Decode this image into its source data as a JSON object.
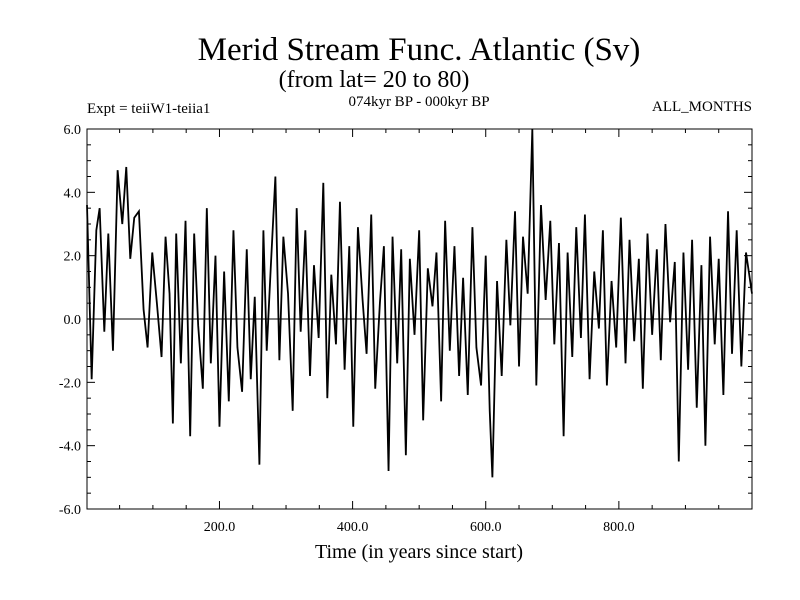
{
  "header": {
    "title": "Merid Stream Func. Atlantic (Sv)",
    "subtitle": "(from lat= 20 to 80)",
    "left_note": "Expt = teiiW1-teiia1",
    "center_note": "074kyr BP - 000kyr BP",
    "right_note": "ALL_MONTHS"
  },
  "chart_data": {
    "type": "line",
    "title": "Merid Stream Func. Atlantic (Sv)",
    "subtitle": "(from lat= 20 to 80)",
    "xlabel": "Time (in years since start)",
    "ylabel": "",
    "xlim": [
      1,
      1000
    ],
    "ylim": [
      -6.0,
      6.0
    ],
    "xticks": [
      200,
      400,
      600,
      800
    ],
    "xtick_labels": [
      "200.0",
      "400.0",
      "600.0",
      "800.0"
    ],
    "yticks": [
      -6,
      -4,
      -2,
      0,
      2,
      4,
      6
    ],
    "ytick_labels": [
      "-6.0",
      "-4.0",
      "-2.0",
      "0.0",
      "2.0",
      "4.0",
      "6.0"
    ],
    "zero_line": true,
    "grid": false,
    "color": "#000000",
    "series": [
      {
        "x": [
          1,
          8,
          15,
          20,
          27,
          33,
          40,
          47,
          54,
          60,
          66,
          72,
          79,
          86,
          92,
          99,
          106,
          113,
          119,
          125,
          130,
          135,
          142,
          149,
          156,
          162,
          168,
          175,
          181,
          187,
          194,
          200,
          207,
          214,
          221,
          227,
          234,
          241,
          247,
          253,
          260,
          266,
          271,
          277,
          284,
          290,
          296,
          303,
          310,
          316,
          322,
          329,
          336,
          342,
          349,
          356,
          362,
          368,
          375,
          381,
          388,
          395,
          401,
          408,
          415,
          421,
          428,
          434,
          441,
          447,
          454,
          460,
          467,
          473,
          480,
          486,
          493,
          500,
          506,
          513,
          520,
          526,
          533,
          539,
          546,
          553,
          560,
          566,
          573,
          580,
          586,
          593,
          600,
          606,
          610,
          617,
          624,
          631,
          637,
          644,
          650,
          656,
          663,
          670,
          676,
          683,
          690,
          697,
          703,
          710,
          717,
          723,
          730,
          736,
          743,
          749,
          756,
          763,
          770,
          776,
          782,
          789,
          796,
          803,
          810,
          816,
          823,
          830,
          836,
          843,
          850,
          857,
          863,
          870,
          877,
          884,
          890,
          897,
          904,
          910,
          917,
          924,
          930,
          937,
          944,
          950,
          957,
          964,
          970,
          977,
          984,
          991,
          1000
        ],
        "y": [
          3.6,
          -1.9,
          2.8,
          3.5,
          -0.4,
          2.7,
          -1.0,
          4.7,
          3.0,
          4.8,
          1.9,
          3.2,
          3.4,
          0.3,
          -0.9,
          2.1,
          0.5,
          -1.2,
          2.6,
          0.8,
          -3.3,
          2.7,
          -1.4,
          3.1,
          -3.7,
          2.7,
          -0.2,
          -2.2,
          3.5,
          -1.4,
          2.0,
          -3.4,
          1.5,
          -2.6,
          2.8,
          -0.9,
          -2.3,
          2.2,
          -1.9,
          0.7,
          -4.6,
          2.8,
          -1.0,
          1.6,
          4.5,
          -1.3,
          2.6,
          0.8,
          -2.9,
          3.5,
          -0.4,
          2.8,
          -1.8,
          1.7,
          -0.6,
          4.3,
          -2.5,
          1.4,
          -0.8,
          3.7,
          -1.6,
          2.3,
          -3.4,
          2.9,
          0.6,
          -1.1,
          3.3,
          -2.2,
          0.5,
          2.3,
          -4.8,
          2.6,
          -1.4,
          2.2,
          -4.3,
          1.9,
          -0.5,
          2.8,
          -3.2,
          1.6,
          0.4,
          2.1,
          -2.6,
          3.1,
          -1.0,
          2.3,
          -1.8,
          1.3,
          -2.4,
          2.9,
          -0.9,
          -2.1,
          2.0,
          -2.9,
          -5.0,
          1.2,
          -1.8,
          2.5,
          -0.2,
          3.4,
          -1.5,
          2.6,
          0.8,
          6.0,
          -2.1,
          3.6,
          0.6,
          3.1,
          -0.8,
          2.4,
          -3.7,
          2.1,
          -1.2,
          2.9,
          -0.6,
          3.3,
          -1.9,
          1.5,
          -0.3,
          2.8,
          -2.1,
          1.2,
          -0.9,
          3.2,
          -1.4,
          2.5,
          -0.7,
          1.9,
          -2.2,
          2.7,
          -0.5,
          2.2,
          -1.3,
          3.0,
          -0.1,
          1.8,
          -4.5,
          2.1,
          -1.6,
          2.5,
          -2.8,
          1.7,
          -4.0,
          2.6,
          -0.8,
          1.9,
          -2.4,
          3.4,
          -1.1,
          2.8,
          -1.5,
          2.1,
          0.8
        ]
      }
    ]
  }
}
